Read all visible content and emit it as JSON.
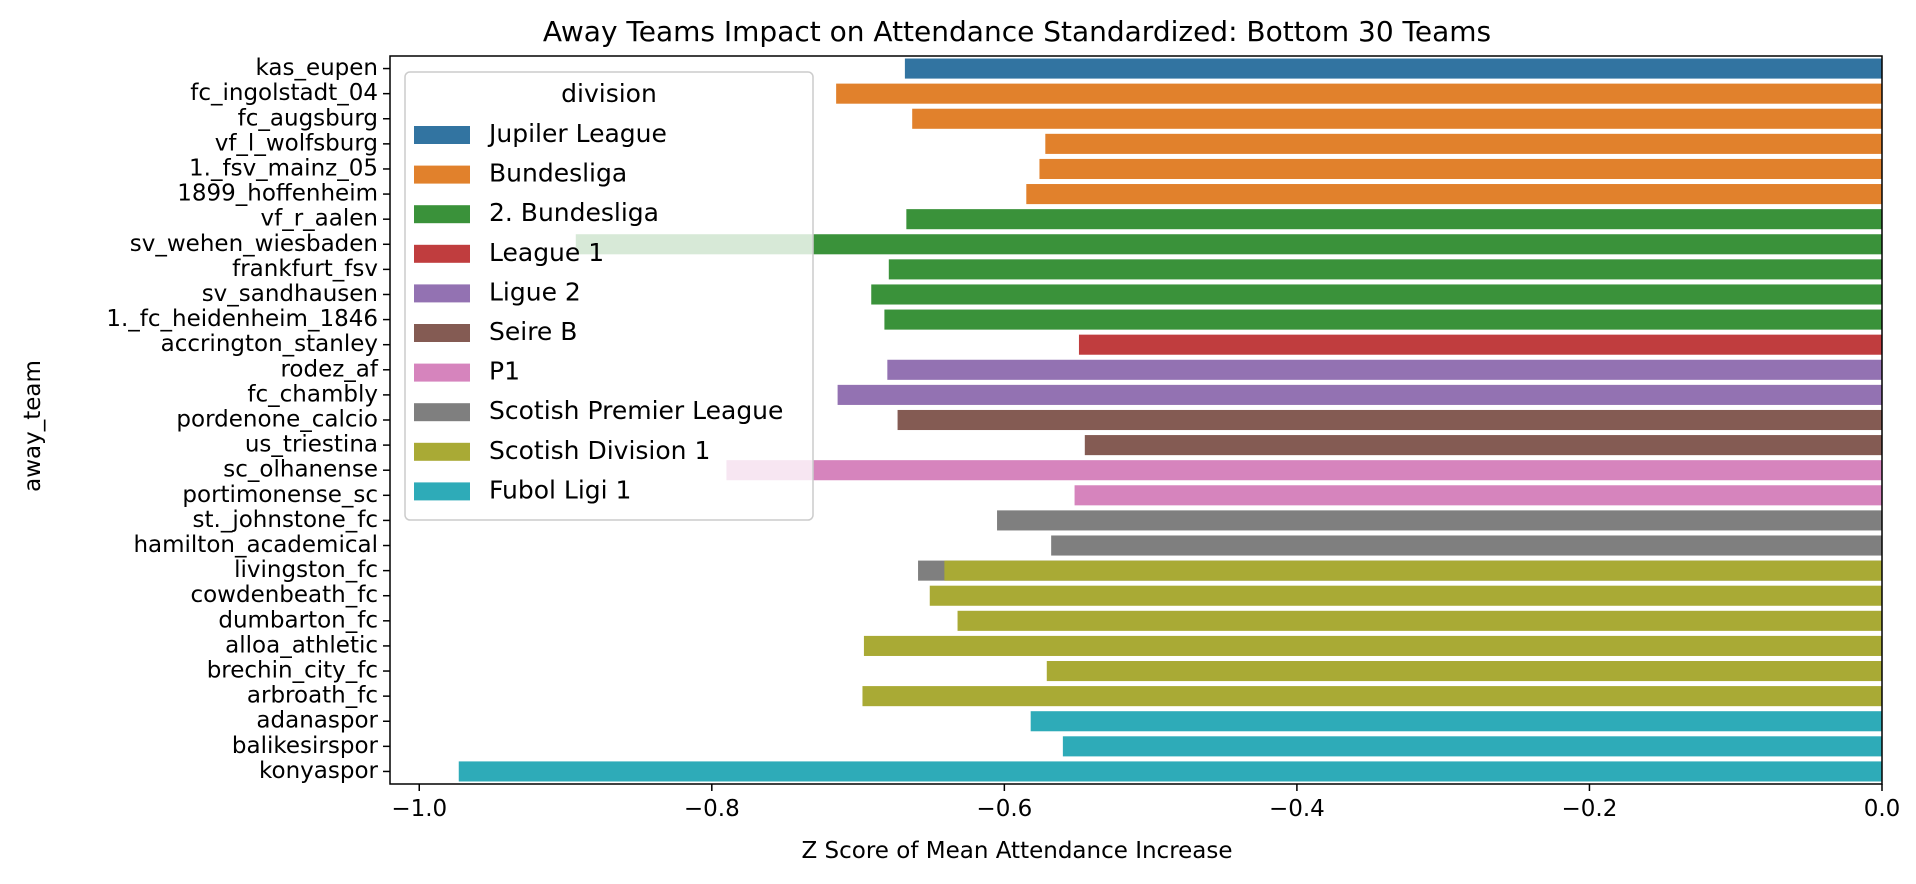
{
  "chart_data": {
    "type": "bar",
    "orientation": "horizontal",
    "title": "Away Teams Impact on Attendance Standardized: Bottom 30 Teams",
    "xlabel": "Z Score of Mean Attendance Increase",
    "ylabel": "away_team",
    "xlim": [
      -1.02,
      0.0
    ],
    "x_ticks": [
      -1.0,
      -0.8,
      -0.6,
      -0.4,
      -0.2,
      0.0
    ],
    "x_tick_labels": [
      "−1.0",
      "−0.8",
      "−0.6",
      "−0.4",
      "−0.2",
      "0.0"
    ],
    "grid": false,
    "legend": {
      "title": "division",
      "placement": "top-left",
      "entries": [
        {
          "name": "Jupiler League",
          "color": "#3274a1"
        },
        {
          "name": "Bundesliga",
          "color": "#e1812c"
        },
        {
          "name": "2. Bundesliga",
          "color": "#3a923a"
        },
        {
          "name": "League 1",
          "color": "#c03d3e"
        },
        {
          "name": "Ligue 2",
          "color": "#9372b2"
        },
        {
          "name": "Seire B",
          "color": "#845b53"
        },
        {
          "name": "P1",
          "color": "#d684bd"
        },
        {
          "name": "Scotish Premier League",
          "color": "#7f7f7f"
        },
        {
          "name": "Scotish Division 1",
          "color": "#a9aa35"
        },
        {
          "name": "Fubol Ligi 1",
          "color": "#2eabb8"
        }
      ]
    },
    "bars": [
      {
        "team": "kas_eupen",
        "value": -0.668,
        "division": "Jupiler League"
      },
      {
        "team": "fc_ingolstadt_04",
        "value": -0.715,
        "division": "Bundesliga"
      },
      {
        "team": "fc_augsburg",
        "value": -0.663,
        "division": "Bundesliga"
      },
      {
        "team": "vf_l_wolfsburg",
        "value": -0.572,
        "division": "Bundesliga"
      },
      {
        "team": "1._fsv_mainz_05",
        "value": -0.576,
        "division": "Bundesliga"
      },
      {
        "team": "1899_hoffenheim",
        "value": -0.585,
        "division": "Bundesliga"
      },
      {
        "team": "vf_r_aalen",
        "value": -0.667,
        "division": "2. Bundesliga"
      },
      {
        "team": "sv_wehen_wiesbaden",
        "value": -0.893,
        "division": "2. Bundesliga"
      },
      {
        "team": "frankfurt_fsv",
        "value": -0.679,
        "division": "2. Bundesliga"
      },
      {
        "team": "sv_sandhausen",
        "value": -0.691,
        "division": "2. Bundesliga"
      },
      {
        "team": "1._fc_heidenheim_1846",
        "value": -0.682,
        "division": "2. Bundesliga"
      },
      {
        "team": "accrington_stanley",
        "value": -0.549,
        "division": "League 1"
      },
      {
        "team": "rodez_af",
        "value": -0.68,
        "division": "Ligue 2"
      },
      {
        "team": "fc_chambly",
        "value": -0.714,
        "division": "Ligue 2"
      },
      {
        "team": "pordenone_calcio",
        "value": -0.673,
        "division": "Seire B"
      },
      {
        "team": "us_triestina",
        "value": -0.545,
        "division": "Seire B"
      },
      {
        "team": "sc_olhanense",
        "value": -0.79,
        "division": "P1"
      },
      {
        "team": "portimonense_sc",
        "value": -0.552,
        "division": "P1"
      },
      {
        "team": "st._johnstone_fc",
        "value": -0.605,
        "division": "Scotish Premier League"
      },
      {
        "team": "hamilton_academical",
        "value": -0.568,
        "division": "Scotish Premier League"
      },
      {
        "team": "livingston_fc",
        "value": -0.659,
        "division": "Scotish Premier League",
        "overlay": {
          "value": -0.641,
          "division": "Scotish Division 1"
        }
      },
      {
        "team": "cowdenbeath_fc",
        "value": -0.651,
        "division": "Scotish Division 1"
      },
      {
        "team": "dumbarton_fc",
        "value": -0.632,
        "division": "Scotish Division 1"
      },
      {
        "team": "alloa_athletic",
        "value": -0.696,
        "division": "Scotish Division 1"
      },
      {
        "team": "brechin_city_fc",
        "value": -0.571,
        "division": "Scotish Division 1"
      },
      {
        "team": "arbroath_fc",
        "value": -0.697,
        "division": "Scotish Division 1"
      },
      {
        "team": "adanaspor",
        "value": -0.582,
        "division": "Fubol Ligi 1"
      },
      {
        "team": "balikesirspor",
        "value": -0.56,
        "division": "Fubol Ligi 1"
      },
      {
        "team": "konyaspor",
        "value": -0.973,
        "division": "Fubol Ligi 1"
      }
    ]
  }
}
